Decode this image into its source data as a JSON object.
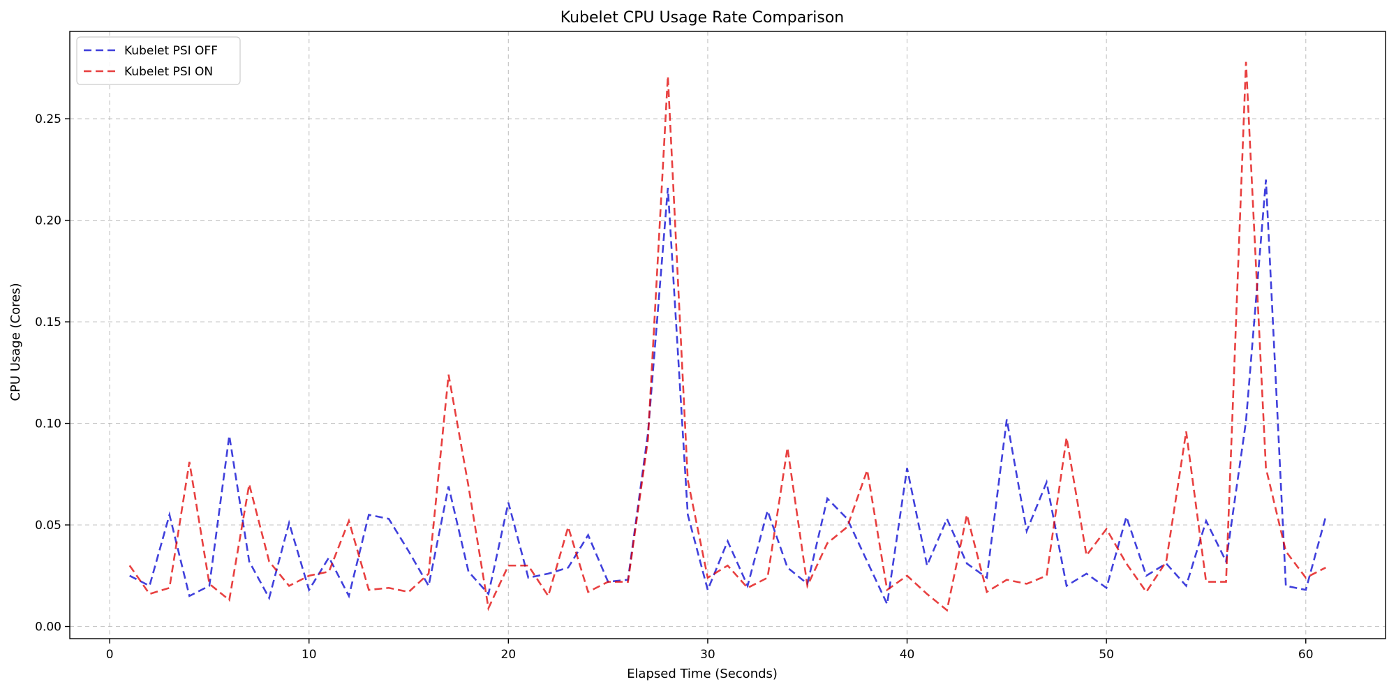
{
  "chart_data": {
    "type": "line",
    "title": "Kubelet CPU Usage Rate Comparison",
    "xlabel": "Elapsed Time (Seconds)",
    "ylabel": "CPU Usage (Cores)",
    "xlim": [
      -2,
      64
    ],
    "ylim": [
      -0.006,
      0.293
    ],
    "xticks": [
      0,
      10,
      20,
      30,
      40,
      50,
      60
    ],
    "xtick_labels": [
      "0",
      "10",
      "20",
      "30",
      "40",
      "50",
      "60"
    ],
    "yticks": [
      0.0,
      0.05,
      0.1,
      0.15,
      0.2,
      0.25
    ],
    "ytick_labels": [
      "0.00",
      "0.05",
      "0.10",
      "0.15",
      "0.20",
      "0.25"
    ],
    "grid": true,
    "legend_position": "top-left",
    "x": [
      1,
      2,
      3,
      4,
      5,
      6,
      7,
      8,
      9,
      10,
      11,
      12,
      13,
      14,
      15,
      16,
      17,
      18,
      19,
      20,
      21,
      22,
      23,
      24,
      25,
      26,
      27,
      28,
      29,
      30,
      31,
      32,
      33,
      34,
      35,
      36,
      37,
      38,
      39,
      40,
      41,
      42,
      43,
      44,
      45,
      46,
      47,
      48,
      49,
      50,
      51,
      52,
      53,
      54,
      55,
      56,
      57,
      58,
      59,
      60,
      61
    ],
    "series": [
      {
        "name": "Kubelet PSI OFF",
        "color": "#0000d0",
        "values": [
          0.025,
          0.02,
          0.055,
          0.015,
          0.02,
          0.094,
          0.032,
          0.014,
          0.051,
          0.018,
          0.034,
          0.015,
          0.055,
          0.053,
          0.037,
          0.02,
          0.069,
          0.027,
          0.016,
          0.061,
          0.024,
          0.026,
          0.029,
          0.045,
          0.022,
          0.023,
          0.095,
          0.216,
          0.055,
          0.018,
          0.042,
          0.02,
          0.057,
          0.029,
          0.021,
          0.063,
          0.053,
          0.032,
          0.011,
          0.078,
          0.03,
          0.053,
          0.031,
          0.024,
          0.102,
          0.047,
          0.071,
          0.02,
          0.026,
          0.019,
          0.054,
          0.025,
          0.031,
          0.02,
          0.052,
          0.032,
          0.101,
          0.22,
          0.02,
          0.018,
          0.054
        ]
      },
      {
        "name": "Kubelet PSI ON",
        "color": "#e00000",
        "values": [
          0.03,
          0.016,
          0.019,
          0.081,
          0.021,
          0.013,
          0.07,
          0.032,
          0.02,
          0.025,
          0.027,
          0.052,
          0.018,
          0.019,
          0.017,
          0.026,
          0.124,
          0.069,
          0.009,
          0.03,
          0.03,
          0.015,
          0.049,
          0.017,
          0.022,
          0.022,
          0.092,
          0.271,
          0.072,
          0.024,
          0.03,
          0.019,
          0.024,
          0.088,
          0.02,
          0.041,
          0.049,
          0.077,
          0.018,
          0.025,
          0.016,
          0.008,
          0.055,
          0.017,
          0.023,
          0.021,
          0.025,
          0.093,
          0.035,
          0.048,
          0.031,
          0.017,
          0.032,
          0.096,
          0.022,
          0.022,
          0.278,
          0.078,
          0.037,
          0.024,
          0.029
        ]
      }
    ]
  }
}
